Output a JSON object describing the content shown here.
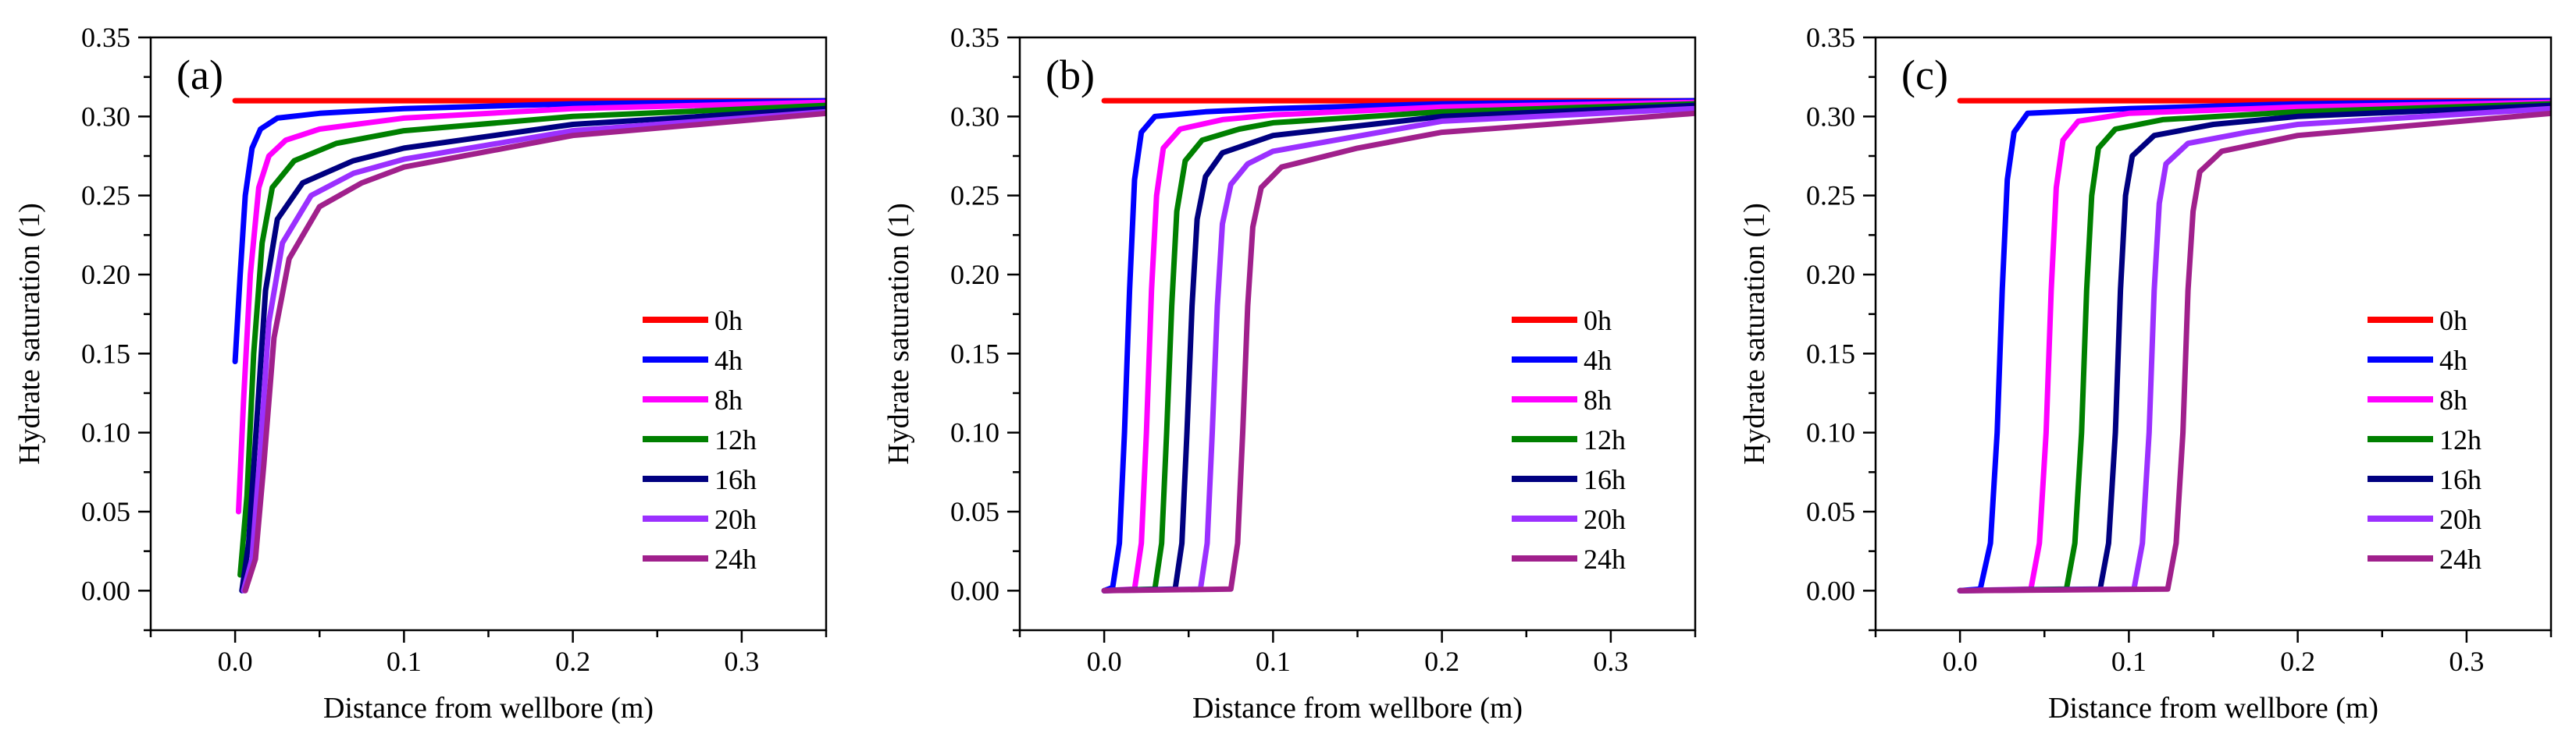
{
  "chart_data": [
    {
      "type": "line",
      "panel_label": "(a)",
      "xlabel": "Distance from wellbore (m)",
      "ylabel": "Hydrate saturation (1)",
      "xlim": [
        -0.05,
        0.35
      ],
      "ylim": [
        -0.025,
        0.35
      ],
      "xticks": [
        0.0,
        0.1,
        0.2,
        0.3
      ],
      "xtick_labels": [
        "0.0",
        "0.1",
        "0.2",
        "0.3"
      ],
      "yticks": [
        0.0,
        0.05,
        0.1,
        0.15,
        0.2,
        0.25,
        0.3,
        0.35
      ],
      "ytick_labels": [
        "0.00",
        "0.05",
        "0.10",
        "0.15",
        "0.20",
        "0.25",
        "0.30",
        "0.35"
      ],
      "legend_position": "center-right",
      "series": [
        {
          "name": "0h",
          "color": "#ff0000",
          "points": [
            [
              0.0,
              0.31
            ],
            [
              0.35,
              0.31
            ]
          ]
        },
        {
          "name": "4h",
          "color": "#0000ff",
          "points": [
            [
              0.0,
              0.145
            ],
            [
              0.003,
              0.2
            ],
            [
              0.006,
              0.25
            ],
            [
              0.01,
              0.28
            ],
            [
              0.015,
              0.292
            ],
            [
              0.025,
              0.299
            ],
            [
              0.05,
              0.302
            ],
            [
              0.1,
              0.305
            ],
            [
              0.2,
              0.308
            ],
            [
              0.35,
              0.31
            ]
          ]
        },
        {
          "name": "8h",
          "color": "#ff00ff",
          "points": [
            [
              0.002,
              0.05
            ],
            [
              0.005,
              0.12
            ],
            [
              0.009,
              0.2
            ],
            [
              0.014,
              0.255
            ],
            [
              0.02,
              0.275
            ],
            [
              0.03,
              0.285
            ],
            [
              0.05,
              0.292
            ],
            [
              0.1,
              0.299
            ],
            [
              0.2,
              0.305
            ],
            [
              0.35,
              0.309
            ]
          ]
        },
        {
          "name": "12h",
          "color": "#008000",
          "points": [
            [
              0.003,
              0.01
            ],
            [
              0.007,
              0.06
            ],
            [
              0.011,
              0.15
            ],
            [
              0.016,
              0.22
            ],
            [
              0.022,
              0.255
            ],
            [
              0.035,
              0.272
            ],
            [
              0.06,
              0.283
            ],
            [
              0.1,
              0.291
            ],
            [
              0.2,
              0.3
            ],
            [
              0.35,
              0.307
            ]
          ]
        },
        {
          "name": "16h",
          "color": "#000080",
          "points": [
            [
              0.004,
              0.0
            ],
            [
              0.008,
              0.03
            ],
            [
              0.013,
              0.11
            ],
            [
              0.018,
              0.19
            ],
            [
              0.025,
              0.235
            ],
            [
              0.04,
              0.258
            ],
            [
              0.07,
              0.272
            ],
            [
              0.1,
              0.28
            ],
            [
              0.2,
              0.295
            ],
            [
              0.35,
              0.305
            ]
          ]
        },
        {
          "name": "20h",
          "color": "#9b30ff",
          "points": [
            [
              0.005,
              0.0
            ],
            [
              0.01,
              0.02
            ],
            [
              0.015,
              0.09
            ],
            [
              0.02,
              0.17
            ],
            [
              0.028,
              0.22
            ],
            [
              0.045,
              0.25
            ],
            [
              0.07,
              0.264
            ],
            [
              0.1,
              0.273
            ],
            [
              0.2,
              0.291
            ],
            [
              0.35,
              0.303
            ]
          ]
        },
        {
          "name": "24h",
          "color": "#a0208c",
          "points": [
            [
              0.006,
              0.0
            ],
            [
              0.012,
              0.02
            ],
            [
              0.017,
              0.08
            ],
            [
              0.023,
              0.16
            ],
            [
              0.032,
              0.21
            ],
            [
              0.05,
              0.243
            ],
            [
              0.075,
              0.258
            ],
            [
              0.1,
              0.268
            ],
            [
              0.2,
              0.288
            ],
            [
              0.35,
              0.302
            ]
          ]
        }
      ]
    },
    {
      "type": "line",
      "panel_label": "(b)",
      "xlabel": "Distance from wellbore (m)",
      "ylabel": "Hydrate saturation (1)",
      "xlim": [
        -0.05,
        0.35
      ],
      "ylim": [
        -0.025,
        0.35
      ],
      "xticks": [
        0.0,
        0.1,
        0.2,
        0.3
      ],
      "xtick_labels": [
        "0.0",
        "0.1",
        "0.2",
        "0.3"
      ],
      "yticks": [
        0.0,
        0.05,
        0.1,
        0.15,
        0.2,
        0.25,
        0.3,
        0.35
      ],
      "ytick_labels": [
        "0.00",
        "0.05",
        "0.10",
        "0.15",
        "0.20",
        "0.25",
        "0.30",
        "0.35"
      ],
      "legend_position": "center-right",
      "series": [
        {
          "name": "0h",
          "color": "#ff0000",
          "points": [
            [
              0.0,
              0.31
            ],
            [
              0.35,
              0.31
            ]
          ]
        },
        {
          "name": "4h",
          "color": "#0000ff",
          "points": [
            [
              0.0,
              0.0
            ],
            [
              0.005,
              0.002
            ],
            [
              0.009,
              0.03
            ],
            [
              0.012,
              0.1
            ],
            [
              0.015,
              0.19
            ],
            [
              0.018,
              0.26
            ],
            [
              0.022,
              0.29
            ],
            [
              0.03,
              0.3
            ],
            [
              0.06,
              0.303
            ],
            [
              0.1,
              0.305
            ],
            [
              0.2,
              0.308
            ],
            [
              0.35,
              0.31
            ]
          ]
        },
        {
          "name": "8h",
          "color": "#ff00ff",
          "points": [
            [
              0.0,
              0.0
            ],
            [
              0.018,
              0.001
            ],
            [
              0.022,
              0.03
            ],
            [
              0.025,
              0.1
            ],
            [
              0.028,
              0.19
            ],
            [
              0.031,
              0.25
            ],
            [
              0.035,
              0.28
            ],
            [
              0.045,
              0.292
            ],
            [
              0.07,
              0.298
            ],
            [
              0.1,
              0.301
            ],
            [
              0.2,
              0.306
            ],
            [
              0.35,
              0.309
            ]
          ]
        },
        {
          "name": "12h",
          "color": "#008000",
          "points": [
            [
              0.0,
              0.0
            ],
            [
              0.03,
              0.001
            ],
            [
              0.034,
              0.03
            ],
            [
              0.037,
              0.1
            ],
            [
              0.04,
              0.18
            ],
            [
              0.043,
              0.24
            ],
            [
              0.048,
              0.272
            ],
            [
              0.058,
              0.285
            ],
            [
              0.08,
              0.292
            ],
            [
              0.1,
              0.296
            ],
            [
              0.2,
              0.303
            ],
            [
              0.35,
              0.308
            ]
          ]
        },
        {
          "name": "16h",
          "color": "#000080",
          "points": [
            [
              0.0,
              0.0
            ],
            [
              0.042,
              0.001
            ],
            [
              0.046,
              0.03
            ],
            [
              0.049,
              0.1
            ],
            [
              0.052,
              0.18
            ],
            [
              0.055,
              0.235
            ],
            [
              0.06,
              0.262
            ],
            [
              0.07,
              0.277
            ],
            [
              0.1,
              0.288
            ],
            [
              0.2,
              0.3
            ],
            [
              0.35,
              0.307
            ]
          ]
        },
        {
          "name": "20h",
          "color": "#9b30ff",
          "points": [
            [
              0.0,
              0.0
            ],
            [
              0.057,
              0.001
            ],
            [
              0.061,
              0.03
            ],
            [
              0.064,
              0.1
            ],
            [
              0.067,
              0.18
            ],
            [
              0.07,
              0.232
            ],
            [
              0.075,
              0.257
            ],
            [
              0.085,
              0.27
            ],
            [
              0.1,
              0.278
            ],
            [
              0.2,
              0.297
            ],
            [
              0.35,
              0.305
            ]
          ]
        },
        {
          "name": "24h",
          "color": "#a0208c",
          "points": [
            [
              0.0,
              0.0
            ],
            [
              0.075,
              0.001
            ],
            [
              0.079,
              0.03
            ],
            [
              0.082,
              0.1
            ],
            [
              0.085,
              0.18
            ],
            [
              0.088,
              0.23
            ],
            [
              0.093,
              0.255
            ],
            [
              0.105,
              0.268
            ],
            [
              0.15,
              0.28
            ],
            [
              0.2,
              0.29
            ],
            [
              0.35,
              0.302
            ]
          ]
        }
      ]
    },
    {
      "type": "line",
      "panel_label": "(c)",
      "xlabel": "Distance from wellbore (m)",
      "ylabel": "Hydrate saturation (1)",
      "xlim": [
        -0.05,
        0.35
      ],
      "ylim": [
        -0.025,
        0.35
      ],
      "xticks": [
        0.0,
        0.1,
        0.2,
        0.3
      ],
      "xtick_labels": [
        "0.0",
        "0.1",
        "0.2",
        "0.3"
      ],
      "yticks": [
        0.0,
        0.05,
        0.1,
        0.15,
        0.2,
        0.25,
        0.3,
        0.35
      ],
      "ytick_labels": [
        "0.00",
        "0.05",
        "0.10",
        "0.15",
        "0.20",
        "0.25",
        "0.30",
        "0.35"
      ],
      "legend_position": "center-right",
      "series": [
        {
          "name": "0h",
          "color": "#ff0000",
          "points": [
            [
              0.0,
              0.31
            ],
            [
              0.35,
              0.31
            ]
          ]
        },
        {
          "name": "4h",
          "color": "#0000ff",
          "points": [
            [
              0.0,
              0.0
            ],
            [
              0.012,
              0.001
            ],
            [
              0.018,
              0.03
            ],
            [
              0.022,
              0.1
            ],
            [
              0.025,
              0.19
            ],
            [
              0.028,
              0.26
            ],
            [
              0.032,
              0.29
            ],
            [
              0.04,
              0.302
            ],
            [
              0.1,
              0.305
            ],
            [
              0.2,
              0.308
            ],
            [
              0.35,
              0.31
            ]
          ]
        },
        {
          "name": "8h",
          "color": "#ff00ff",
          "points": [
            [
              0.0,
              0.0
            ],
            [
              0.042,
              0.001
            ],
            [
              0.047,
              0.03
            ],
            [
              0.051,
              0.1
            ],
            [
              0.054,
              0.19
            ],
            [
              0.057,
              0.255
            ],
            [
              0.061,
              0.285
            ],
            [
              0.07,
              0.297
            ],
            [
              0.1,
              0.302
            ],
            [
              0.2,
              0.306
            ],
            [
              0.35,
              0.309
            ]
          ]
        },
        {
          "name": "12h",
          "color": "#008000",
          "points": [
            [
              0.0,
              0.0
            ],
            [
              0.063,
              0.001
            ],
            [
              0.068,
              0.03
            ],
            [
              0.072,
              0.1
            ],
            [
              0.075,
              0.19
            ],
            [
              0.078,
              0.25
            ],
            [
              0.082,
              0.28
            ],
            [
              0.092,
              0.292
            ],
            [
              0.12,
              0.298
            ],
            [
              0.2,
              0.303
            ],
            [
              0.35,
              0.308
            ]
          ]
        },
        {
          "name": "16h",
          "color": "#000080",
          "points": [
            [
              0.0,
              0.0
            ],
            [
              0.083,
              0.001
            ],
            [
              0.088,
              0.03
            ],
            [
              0.092,
              0.1
            ],
            [
              0.095,
              0.19
            ],
            [
              0.098,
              0.25
            ],
            [
              0.102,
              0.275
            ],
            [
              0.115,
              0.288
            ],
            [
              0.15,
              0.295
            ],
            [
              0.2,
              0.3
            ],
            [
              0.35,
              0.307
            ]
          ]
        },
        {
          "name": "20h",
          "color": "#9b30ff",
          "points": [
            [
              0.0,
              0.0
            ],
            [
              0.103,
              0.001
            ],
            [
              0.108,
              0.03
            ],
            [
              0.112,
              0.1
            ],
            [
              0.115,
              0.19
            ],
            [
              0.118,
              0.245
            ],
            [
              0.122,
              0.27
            ],
            [
              0.135,
              0.283
            ],
            [
              0.17,
              0.29
            ],
            [
              0.2,
              0.295
            ],
            [
              0.35,
              0.305
            ]
          ]
        },
        {
          "name": "24h",
          "color": "#a0208c",
          "points": [
            [
              0.0,
              0.0
            ],
            [
              0.123,
              0.001
            ],
            [
              0.128,
              0.03
            ],
            [
              0.132,
              0.1
            ],
            [
              0.135,
              0.19
            ],
            [
              0.138,
              0.24
            ],
            [
              0.142,
              0.265
            ],
            [
              0.155,
              0.278
            ],
            [
              0.2,
              0.288
            ],
            [
              0.35,
              0.302
            ]
          ]
        }
      ]
    }
  ]
}
